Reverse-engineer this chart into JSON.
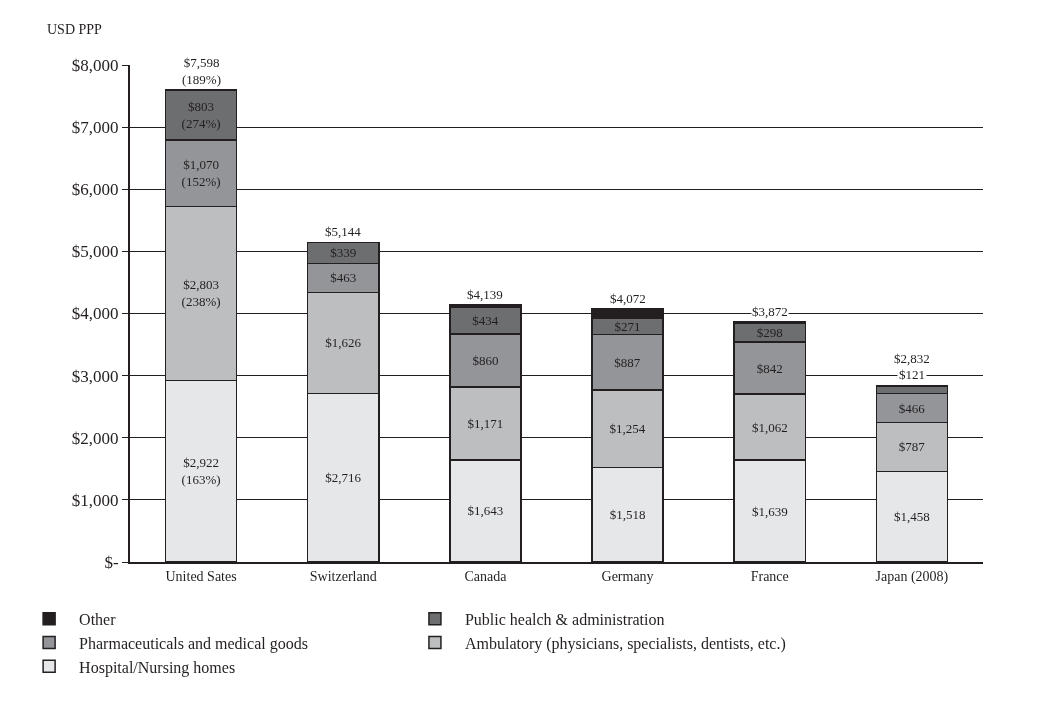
{
  "chart_data": {
    "type": "bar",
    "stacked": true,
    "ylabel": "USD PPP",
    "categories": [
      "United Sates",
      "Switzerland",
      "Canada",
      "Germany",
      "France",
      "Japan (2008)"
    ],
    "series": [
      {
        "name": "Hospital/Nursing homes",
        "color": "#e6e7e8",
        "values": [
          2922,
          2716,
          1643,
          1518,
          1639,
          1458
        ],
        "value_labels": [
          "$2,922\n(163%)",
          "$2,716",
          "$1,643",
          "$1,518",
          "$1,639",
          "$1,458"
        ]
      },
      {
        "name": "Ambulatory (physicians, specialists, dentists, etc.)",
        "color": "#bcbec0",
        "values": [
          2803,
          1626,
          1171,
          1254,
          1062,
          787
        ],
        "value_labels": [
          "$2,803\n(238%)",
          "$1,626",
          "$1,171",
          "$1,254",
          "$1,062",
          "$787"
        ]
      },
      {
        "name": "Pharmaceuticals and medical goods",
        "color": "#939598",
        "values": [
          1070,
          463,
          860,
          887,
          842,
          466
        ],
        "value_labels": [
          "$1,070\n(152%)",
          "$463",
          "$860",
          "$887",
          "$842",
          "$466"
        ]
      },
      {
        "name": "Public healch & administration",
        "color": "#6d6e70",
        "values": [
          803,
          339,
          434,
          271,
          298,
          121
        ],
        "value_labels": [
          "$803\n(274%)",
          "$339",
          "$434",
          "$271",
          "$298",
          "$121"
        ]
      },
      {
        "name": "Other",
        "color": "#231f20",
        "values": [
          null,
          null,
          30,
          140,
          30,
          null
        ],
        "value_labels": [
          null,
          null,
          null,
          null,
          null,
          null
        ]
      }
    ],
    "totals": [
      "$7,598\n(189%)",
      "$5,144",
      "$4,139",
      "$4,072",
      "$3,872",
      "$2,832"
    ],
    "ylim": [
      0,
      8000
    ],
    "yticks": [
      {
        "value": 0,
        "label": "$-"
      },
      {
        "value": 1000,
        "label": "$1,000"
      },
      {
        "value": 2000,
        "label": "$2,000"
      },
      {
        "value": 3000,
        "label": "$3,000"
      },
      {
        "value": 4000,
        "label": "$4,000"
      },
      {
        "value": 5000,
        "label": "$5,000"
      },
      {
        "value": 6000,
        "label": "$6,000"
      },
      {
        "value": 7000,
        "label": "$7,000"
      },
      {
        "value": 8000,
        "label": "$8,000"
      }
    ],
    "grid": "y",
    "legend": "bottom"
  }
}
